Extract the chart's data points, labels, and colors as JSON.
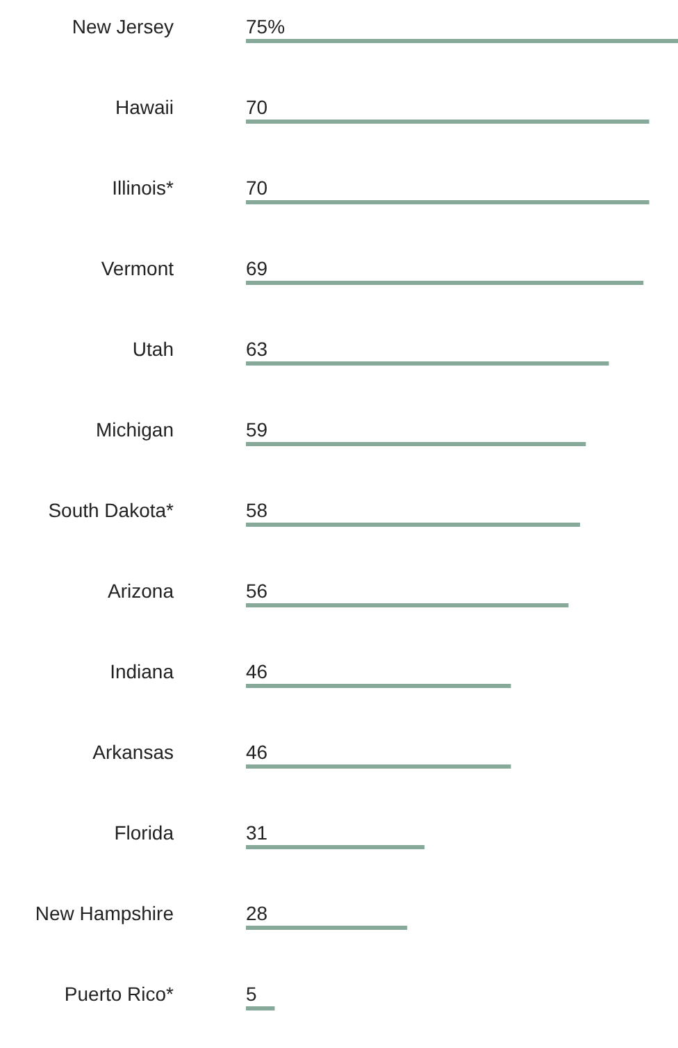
{
  "chart_data": {
    "type": "bar",
    "orientation": "horizontal",
    "categories": [
      "New Jersey",
      "Hawaii",
      "Illinois*",
      "Vermont",
      "Utah",
      "Michigan",
      "South Dakota*",
      "Arizona",
      "Indiana",
      "Arkansas",
      "Florida",
      "New Hampshire",
      "Puerto Rico*"
    ],
    "values": [
      75,
      70,
      70,
      69,
      63,
      59,
      58,
      56,
      46,
      46,
      31,
      28,
      5
    ],
    "value_labels": [
      "75%",
      "70",
      "70",
      "69",
      "63",
      "59",
      "58",
      "56",
      "46",
      "46",
      "31",
      "28",
      "5"
    ],
    "color": "#87a99a"
  }
}
